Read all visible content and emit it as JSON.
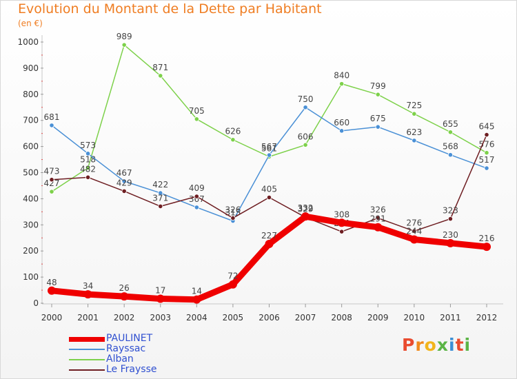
{
  "title": "Evolution du Montant de la Dette par Habitant",
  "subtitle": "(en €)",
  "logo": {
    "letters": [
      "P",
      "r",
      "o",
      "x",
      "i",
      "t",
      "i"
    ],
    "colors": [
      "#e94b2f",
      "#f08a1d",
      "#f2b51c",
      "#5bb446",
      "#3b8fd6",
      "#e94b2f",
      "#5bb446"
    ]
  },
  "chart_data": {
    "type": "line",
    "x": [
      "2000",
      "2001",
      "2002",
      "2003",
      "2004",
      "2005",
      "2006",
      "2007",
      "2008",
      "2009",
      "2010",
      "2011",
      "2012"
    ],
    "ylim": [
      0,
      1000
    ],
    "yticks": [
      "0",
      "100",
      "200",
      "300",
      "400",
      "500",
      "600",
      "700",
      "800",
      "900",
      "1000"
    ],
    "grid": false,
    "legend_position": "bottom-left",
    "series": [
      {
        "name": "Alban",
        "color": "#7dd14a",
        "values": [
          427,
          518,
          989,
          871,
          705,
          626,
          561,
          606,
          840,
          799,
          725,
          655,
          576
        ],
        "labels": [
          "427",
          "518",
          "989",
          "871",
          "705",
          "626",
          "561",
          "606",
          "840",
          "799",
          "725",
          "655",
          "576"
        ]
      },
      {
        "name": "Rayssac",
        "color": "#4a90d6",
        "values": [
          681,
          573,
          467,
          422,
          367,
          315,
          567,
          750,
          660,
          675,
          623,
          568,
          517
        ],
        "labels": [
          "681",
          "573",
          "467",
          "422",
          "367",
          "315",
          "567",
          "750",
          "660",
          "675",
          "623",
          "568",
          "517"
        ]
      },
      {
        "name": "Le Fraysse",
        "color": "#6e1e22",
        "values": [
          473,
          482,
          429,
          371,
          409,
          326,
          405,
          329,
          274,
          326,
          276,
          323,
          645
        ],
        "labels": [
          "473",
          "482",
          "429",
          "371",
          "409",
          "326",
          "405",
          "329",
          "274",
          "326",
          "276",
          "323",
          "645"
        ]
      },
      {
        "name": "PAULINET",
        "color": "#ef0000",
        "values": [
          48,
          34,
          26,
          17,
          14,
          72,
          227,
          332,
          308,
          291,
          244,
          230,
          216
        ],
        "labels": [
          "48",
          "34",
          "26",
          "17",
          "14",
          "72",
          "227",
          "332",
          "308",
          "291",
          "244",
          "230",
          "216"
        ]
      }
    ]
  },
  "legend": [
    {
      "name": "PAULINET",
      "color": "#ef0000",
      "width": 7
    },
    {
      "name": "Rayssac",
      "color": "#4a90d6",
      "width": 2
    },
    {
      "name": "Alban",
      "color": "#7dd14a",
      "width": 2
    },
    {
      "name": "Le Fraysse",
      "color": "#6e1e22",
      "width": 2
    }
  ]
}
